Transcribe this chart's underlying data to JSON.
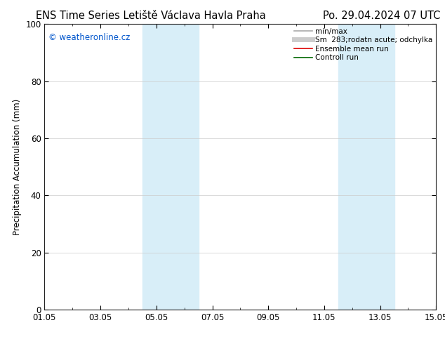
{
  "title_left": "ENS Time Series Letiště Václava Havla Praha",
  "title_right": "Po. 29.04.2024 07 UTC",
  "ylabel": "Precipitation Accumulation (mm)",
  "watermark": "© weatheronline.cz",
  "watermark_color": "#0055cc",
  "ylim": [
    0,
    100
  ],
  "xlim_start": 0,
  "xlim_end": 14,
  "xtick_labels": [
    "01.05",
    "03.05",
    "05.05",
    "07.05",
    "09.05",
    "11.05",
    "13.05",
    "15.05"
  ],
  "xtick_positions": [
    0,
    2,
    4,
    6,
    8,
    10,
    12,
    14
  ],
  "ytick_labels": [
    "0",
    "20",
    "40",
    "60",
    "80",
    "100"
  ],
  "ytick_positions": [
    0,
    20,
    40,
    60,
    80,
    100
  ],
  "shaded_regions": [
    {
      "xmin": 3.5,
      "xmax": 4.5,
      "color": "#d8eef8",
      "alpha": 1.0
    },
    {
      "xmin": 4.5,
      "xmax": 5.5,
      "color": "#d8eef8",
      "alpha": 1.0
    },
    {
      "xmin": 10.5,
      "xmax": 11.5,
      "color": "#d8eef8",
      "alpha": 1.0
    },
    {
      "xmin": 11.5,
      "xmax": 12.5,
      "color": "#d8eef8",
      "alpha": 1.0
    }
  ],
  "legend_entries": [
    {
      "label": "min/max",
      "color": "#aaaaaa",
      "lw": 1.2,
      "linestyle": "-"
    },
    {
      "label": "Sm  283;rodatn acute; odchylka",
      "color": "#cccccc",
      "lw": 5,
      "linestyle": "-"
    },
    {
      "label": "Ensemble mean run",
      "color": "#dd0000",
      "lw": 1.2,
      "linestyle": "-"
    },
    {
      "label": "Controll run",
      "color": "#006600",
      "lw": 1.2,
      "linestyle": "-"
    }
  ],
  "background_color": "#ffffff",
  "plot_bg_color": "#ffffff",
  "grid_color": "#cccccc",
  "title_fontsize": 10.5,
  "axis_label_fontsize": 8.5,
  "tick_fontsize": 8.5,
  "legend_fontsize": 7.5
}
